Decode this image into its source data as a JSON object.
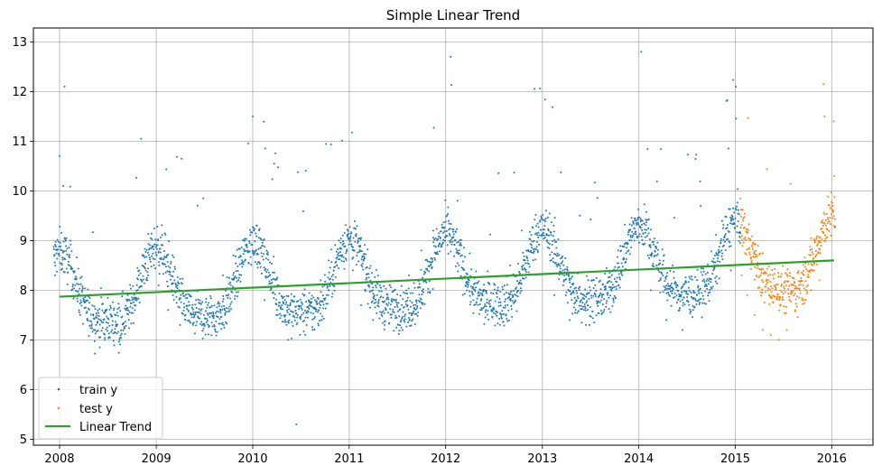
{
  "chart_data": {
    "type": "scatter",
    "title": "Simple Linear Trend",
    "xlabel": "",
    "ylabel": "",
    "x_type": "date",
    "xlim": [
      "2007-09-24",
      "2016-06-05"
    ],
    "ylim": [
      4.88,
      13.28
    ],
    "xticks": [
      {
        "value": "2008-01-01",
        "label": "2008"
      },
      {
        "value": "2009-01-01",
        "label": "2009"
      },
      {
        "value": "2010-01-01",
        "label": "2010"
      },
      {
        "value": "2011-01-01",
        "label": "2011"
      },
      {
        "value": "2012-01-01",
        "label": "2012"
      },
      {
        "value": "2013-01-01",
        "label": "2013"
      },
      {
        "value": "2014-01-01",
        "label": "2014"
      },
      {
        "value": "2015-01-01",
        "label": "2015"
      },
      {
        "value": "2016-01-01",
        "label": "2016"
      }
    ],
    "yticks": [
      5,
      6,
      7,
      8,
      9,
      10,
      11,
      12,
      13
    ],
    "grid": true,
    "legend_position": "lower-left",
    "series": [
      {
        "name": "train y",
        "kind": "scatter",
        "color": "#1f77b4",
        "x_start": "2007-12-10",
        "x_end": "2015-01-20",
        "sampled_points": [
          [
            "2007-12-15",
            8.3
          ],
          [
            "2008-01-08",
            8.8
          ],
          [
            "2008-01-15",
            10.1
          ],
          [
            "2008-01-20",
            12.1
          ],
          [
            "2008-02-15",
            8.0
          ],
          [
            "2008-03-15",
            7.6
          ],
          [
            "2008-04-15",
            7.4
          ],
          [
            "2008-05-15",
            7.2
          ],
          [
            "2008-06-20",
            7.0
          ],
          [
            "2008-08-01",
            7.5
          ],
          [
            "2008-09-15",
            7.9
          ],
          [
            "2008-10-20",
            8.1
          ],
          [
            "2008-12-01",
            8.3
          ],
          [
            "2009-01-10",
            8.1
          ],
          [
            "2009-02-15",
            7.6
          ],
          [
            "2009-04-01",
            7.3
          ],
          [
            "2009-05-20",
            7.3
          ],
          [
            "2009-07-15",
            7.7
          ],
          [
            "2009-09-10",
            8.3
          ],
          [
            "2009-10-20",
            8.7
          ],
          [
            "2009-12-01",
            9.0
          ],
          [
            "2010-01-01",
            11.5
          ],
          [
            "2010-01-15",
            9.3
          ],
          [
            "2010-02-15",
            7.8
          ],
          [
            "2010-04-01",
            7.5
          ],
          [
            "2010-05-15",
            7.0
          ],
          [
            "2010-06-15",
            5.3
          ],
          [
            "2010-08-01",
            7.8
          ],
          [
            "2010-09-15",
            8.2
          ],
          [
            "2010-10-15",
            8.6
          ],
          [
            "2010-12-01",
            8.7
          ],
          [
            "2011-01-15",
            8.4
          ],
          [
            "2011-02-15",
            7.7
          ],
          [
            "2011-04-01",
            7.4
          ],
          [
            "2011-05-15",
            7.3
          ],
          [
            "2011-07-01",
            7.7
          ],
          [
            "2011-08-15",
            8.3
          ],
          [
            "2011-10-01",
            8.8
          ],
          [
            "2011-11-15",
            9.2
          ],
          [
            "2012-01-20",
            12.7
          ],
          [
            "2012-02-15",
            9.8
          ],
          [
            "2012-04-15",
            7.8
          ],
          [
            "2012-06-01",
            7.6
          ],
          [
            "2012-07-15",
            8.0
          ],
          [
            "2012-09-01",
            8.5
          ],
          [
            "2012-10-15",
            9.2
          ],
          [
            "2012-12-15",
            8.8
          ],
          [
            "2013-02-15",
            7.9
          ],
          [
            "2013-04-15",
            7.4
          ],
          [
            "2013-06-15",
            7.3
          ],
          [
            "2013-08-15",
            7.9
          ],
          [
            "2013-10-15",
            8.8
          ],
          [
            "2013-12-15",
            9.0
          ],
          [
            "2014-01-10",
            12.8
          ],
          [
            "2014-02-15",
            8.0
          ],
          [
            "2014-04-15",
            7.4
          ],
          [
            "2014-06-15",
            7.2
          ],
          [
            "2014-08-15",
            7.8
          ],
          [
            "2014-10-15",
            8.5
          ],
          [
            "2014-12-15",
            8.4
          ]
        ]
      },
      {
        "name": "test y",
        "kind": "scatter",
        "color": "#ff7f0e",
        "x_start": "2015-01-20",
        "x_end": "2016-01-15",
        "sampled_points": [
          [
            "2015-01-25",
            8.3
          ],
          [
            "2015-02-15",
            7.9
          ],
          [
            "2015-03-15",
            7.5
          ],
          [
            "2015-04-15",
            7.2
          ],
          [
            "2015-05-15",
            7.1
          ],
          [
            "2015-06-15",
            7.0
          ],
          [
            "2015-07-15",
            7.2
          ],
          [
            "2015-08-15",
            7.6
          ],
          [
            "2015-09-15",
            8.1
          ],
          [
            "2015-10-15",
            8.0
          ],
          [
            "2015-11-15",
            8.2
          ],
          [
            "2015-12-01",
            12.15
          ],
          [
            "2015-12-05",
            11.5
          ],
          [
            "2016-01-10",
            10.3
          ]
        ]
      },
      {
        "name": "Linear Trend",
        "kind": "line",
        "color": "#2ca02c",
        "x": [
          "2008-01-01",
          "2016-01-10"
        ],
        "y": [
          7.87,
          8.6
        ]
      }
    ]
  }
}
